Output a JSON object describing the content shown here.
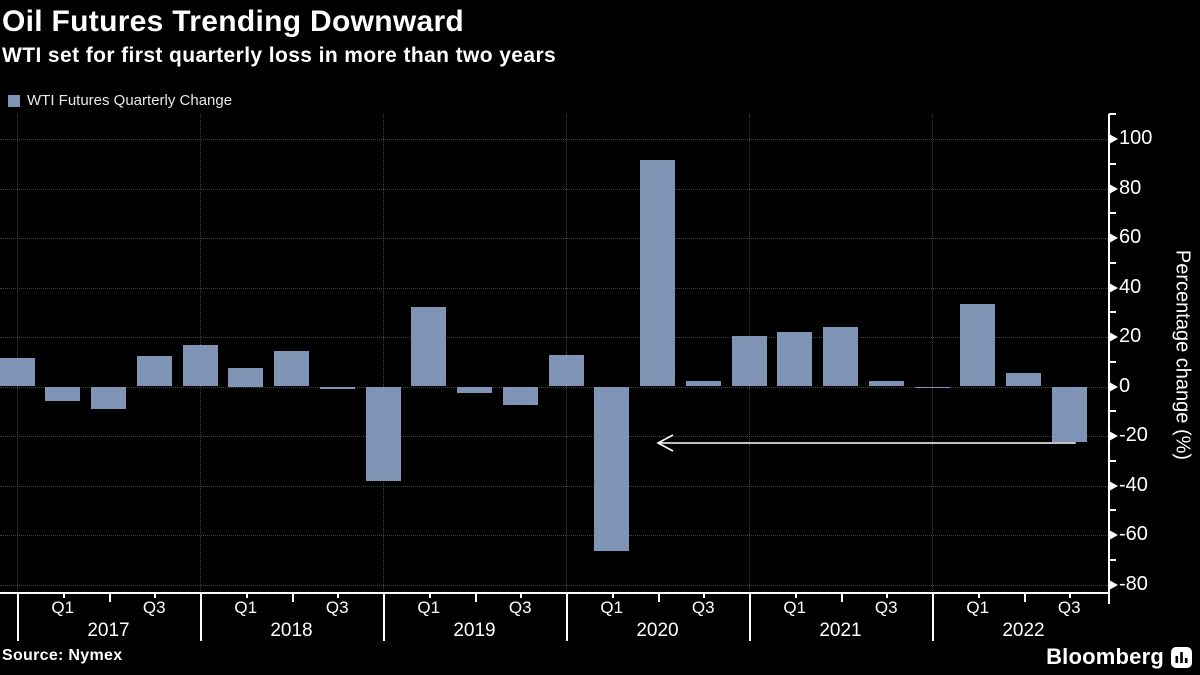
{
  "header": {
    "title": "Oil Futures Trending Downward",
    "subtitle": "WTI set for first quarterly loss in more than two years"
  },
  "legend": {
    "label": "WTI Futures Quarterly Change"
  },
  "footer": {
    "source": "Source: Nymex",
    "brand": "Bloomberg"
  },
  "colors": {
    "background": "#000000",
    "bar": "#8094b6",
    "axis": "#ffffff",
    "grid": "#414141",
    "text": "#ffffff"
  },
  "chart_data": {
    "type": "bar",
    "title": "Oil Futures Trending Downward",
    "subtitle": "WTI set for first quarterly loss in more than two years",
    "series_name": "WTI Futures Quarterly Change",
    "ylabel": "Percentage change (%)",
    "x": [
      "2016 Q4",
      "2017 Q1",
      "2017 Q2",
      "2017 Q3",
      "2017 Q4",
      "2018 Q1",
      "2018 Q2",
      "2018 Q3",
      "2018 Q4",
      "2019 Q1",
      "2019 Q2",
      "2019 Q3",
      "2019 Q4",
      "2020 Q1",
      "2020 Q2",
      "2020 Q3",
      "2020 Q4",
      "2021 Q1",
      "2021 Q2",
      "2021 Q3",
      "2021 Q4",
      "2022 Q1",
      "2022 Q2",
      "2022 Q3"
    ],
    "values": [
      11.4,
      -5.8,
      -9.0,
      12.2,
      16.9,
      7.5,
      14.2,
      -1.2,
      -38.0,
      32.0,
      -2.8,
      -7.5,
      12.9,
      -66.5,
      91.4,
      2.4,
      20.5,
      21.9,
      24.2,
      2.1,
      -0.2,
      33.3,
      5.5,
      -22.5
    ],
    "years": [
      "2017",
      "2018",
      "2019",
      "2020",
      "2021",
      "2022"
    ],
    "quarter_tick_labels": [
      "Q1",
      "Q3"
    ],
    "y_ticks_major": [
      100,
      80,
      60,
      40,
      20,
      0,
      -20,
      -40,
      -60,
      -80
    ],
    "y_minor_step": 10,
    "ylim": [
      -83,
      110
    ],
    "grid": "horizontal dotted at 20-unit intervals, vertical dotted at year starts",
    "legend_position": "top-left",
    "y_axis_side": "right",
    "annotation": {
      "type": "arrow-left",
      "level": -23,
      "from": "2022 Q3",
      "to": "2020 Q2"
    }
  }
}
